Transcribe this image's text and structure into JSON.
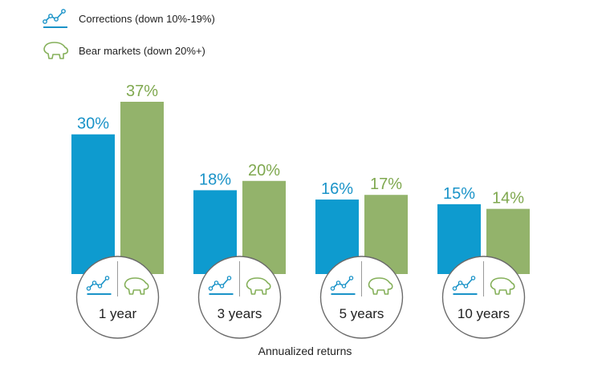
{
  "legend": [
    {
      "label": "Corrections (down 10%-19%)",
      "icon": "trend-line-icon",
      "color": "#0e9bcf"
    },
    {
      "label": "Bear markets (down 20%+)",
      "icon": "bear-icon",
      "color": "#85b05a"
    }
  ],
  "chart_data": {
    "type": "bar",
    "categories": [
      "1 year",
      "3 years",
      "5 years",
      "10 years"
    ],
    "series": [
      {
        "name": "Corrections (down 10%-19%)",
        "values": [
          30,
          18,
          16,
          15
        ],
        "labels": [
          "30%",
          "18%",
          "16%",
          "15%"
        ],
        "color": "#0e9bcf"
      },
      {
        "name": "Bear markets (down 20%+)",
        "values": [
          37,
          20,
          17,
          14
        ],
        "labels": [
          "37%",
          "20%",
          "17%",
          "14%"
        ],
        "color": "#93b36b"
      }
    ],
    "label_colors": [
      "#1a93c8",
      "#7fa84f"
    ],
    "xlabel": "Annualized returns",
    "ylabel": "",
    "ylim": [
      0,
      37
    ],
    "grid": false,
    "legend_position": "top-left"
  }
}
